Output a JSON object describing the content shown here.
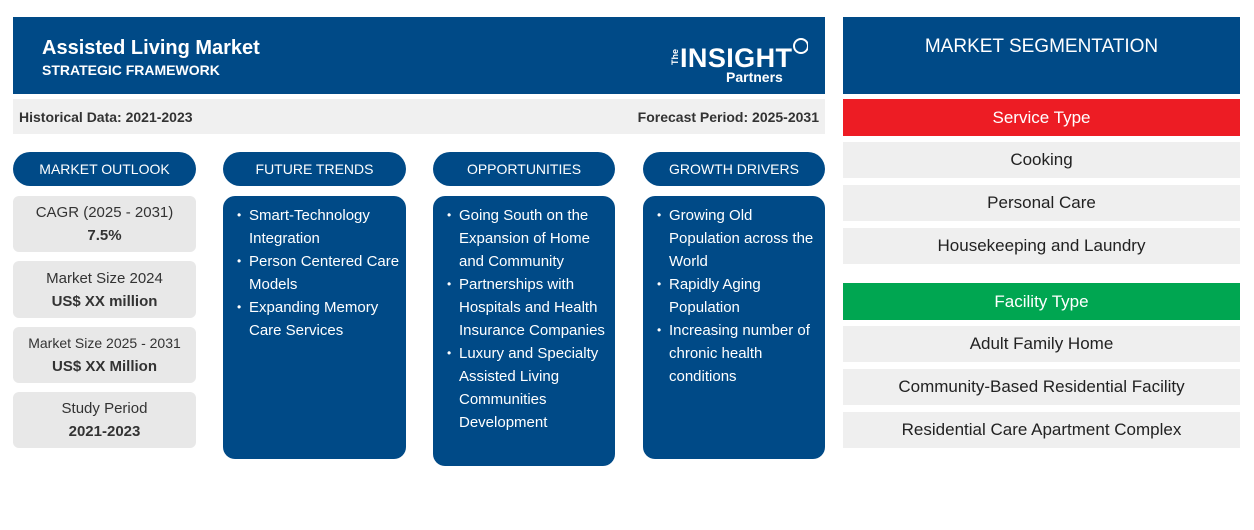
{
  "header": {
    "title": "Assisted Living Market",
    "subtitle": "STRATEGIC FRAMEWORK",
    "logo_text": "The INSIGHT Partners"
  },
  "periods": {
    "historical": "Historical Data: 2021-2023",
    "forecast": "Forecast Period: 2025-2031"
  },
  "columns": [
    {
      "label": "MARKET OUTLOOK"
    },
    {
      "label": "FUTURE TRENDS",
      "items": [
        "Smart-Technology Integration",
        "Person Centered Care Models",
        "Expanding Memory Care Services"
      ]
    },
    {
      "label": "OPPORTUNITIES",
      "items": [
        "Going South on the Expansion of Home and Community",
        "Partnerships with Hospitals and Health Insurance Companies",
        "Luxury and Specialty Assisted Living Communities Development"
      ]
    },
    {
      "label": "GROWTH DRIVERS",
      "items": [
        "Growing Old Population across the World",
        "Rapidly Aging Population",
        "Increasing number of chronic health conditions"
      ]
    }
  ],
  "outlook": [
    {
      "label": "CAGR (2025 - 2031)",
      "value": "7.5%"
    },
    {
      "label": "Market Size 2024",
      "value": "US$ XX million"
    },
    {
      "label": "Market Size 2025 - 2031",
      "value": "US$ XX Million"
    },
    {
      "label": "Study Period",
      "value": "2021-2023"
    }
  ],
  "segmentation": {
    "title": "MARKET SEGMENTATION",
    "groups": [
      {
        "label": "Service Type",
        "color": "#ed1c24",
        "items": [
          "Cooking",
          "Personal Care",
          "Housekeeping and Laundry"
        ]
      },
      {
        "label": "Facility Type",
        "color": "#00a651",
        "items": [
          "Adult Family Home",
          "Community-Based Residential Facility",
          "Residential Care Apartment Complex"
        ]
      }
    ]
  },
  "colors": {
    "navy": "#004a87",
    "gray": "#e8e8e8"
  }
}
